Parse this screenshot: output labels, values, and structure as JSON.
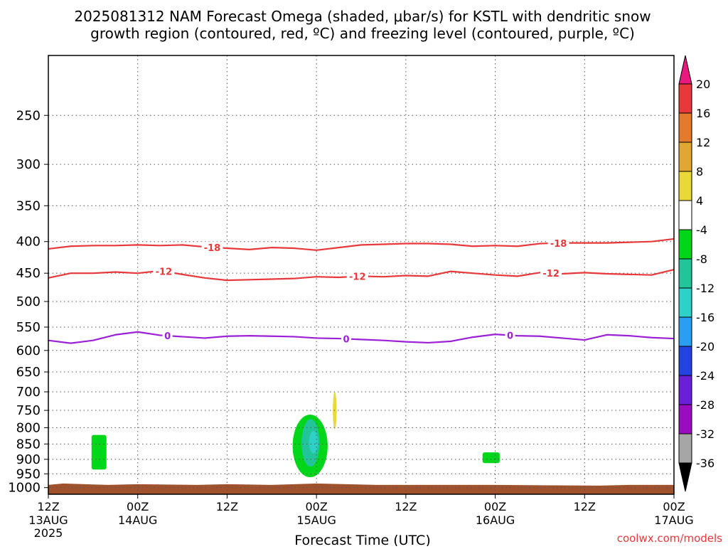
{
  "chart_data": {
    "type": "heatmap",
    "title": "2025081312 NAM Forecast Omega (shaded, μbar/s) for KSTL with dendritic snow growth region (contoured, red, ºC) and freezing level (contoured, purple, ºC)",
    "title_line1": "2025081312 NAM Forecast Omega (shaded, μbar/s) for KSTL with dendritic snow",
    "title_line2": "growth region (contoured, red, ºC) and freezing level (contoured, purple, ºC)",
    "xlabel": "Forecast Time (UTC)",
    "ylabel": "",
    "credit": "coolwx.com/models",
    "grid": true,
    "x_range_hours": [
      0,
      84
    ],
    "y_range_hPa": [
      200,
      1025
    ],
    "x_ticks": [
      {
        "hour": 0,
        "line1": "12Z",
        "line2": "13AUG",
        "line3": "2025"
      },
      {
        "hour": 12,
        "line1": "00Z",
        "line2": "14AUG",
        "line3": ""
      },
      {
        "hour": 24,
        "line1": "12Z",
        "line2": "",
        "line3": ""
      },
      {
        "hour": 36,
        "line1": "00Z",
        "line2": "15AUG",
        "line3": ""
      },
      {
        "hour": 48,
        "line1": "12Z",
        "line2": "",
        "line3": ""
      },
      {
        "hour": 60,
        "line1": "00Z",
        "line2": "16AUG",
        "line3": ""
      },
      {
        "hour": 72,
        "line1": "12Z",
        "line2": "",
        "line3": ""
      },
      {
        "hour": 84,
        "line1": "00Z",
        "line2": "17AUG",
        "line3": ""
      }
    ],
    "y_ticks": [
      250,
      300,
      350,
      400,
      450,
      500,
      550,
      600,
      650,
      700,
      750,
      800,
      850,
      900,
      950,
      1000
    ],
    "contours": [
      {
        "name": "dendritic-upper",
        "label": "-18",
        "color": "#e8383a",
        "x": [
          0,
          3,
          6,
          9,
          12,
          15,
          18,
          21,
          24,
          27,
          30,
          33,
          36,
          39,
          42,
          45,
          48,
          51,
          54,
          57,
          60,
          63,
          66,
          69,
          72,
          75,
          78,
          81,
          84
        ],
        "p": [
          411,
          407,
          406,
          406,
          405,
          406,
          405,
          408,
          410,
          412,
          409,
          410,
          413,
          409,
          405,
          404,
          403,
          403,
          404,
          407,
          406,
          407,
          403,
          402,
          402,
          402,
          401,
          400,
          396
        ],
        "label_hours": [
          22,
          68.5
        ]
      },
      {
        "name": "dendritic-lower",
        "label": "-12",
        "color": "#e8383a",
        "x": [
          0,
          3,
          6,
          9,
          12,
          15,
          18,
          21,
          24,
          27,
          30,
          33,
          36,
          39,
          42,
          45,
          48,
          51,
          54,
          57,
          60,
          63,
          66,
          69,
          72,
          75,
          78,
          81,
          84
        ],
        "p": [
          458,
          450,
          450,
          448,
          450,
          446,
          452,
          458,
          462,
          461,
          460,
          459,
          456,
          457,
          455,
          456,
          454,
          455,
          447,
          450,
          453,
          455,
          449,
          451,
          449,
          451,
          452,
          453,
          444
        ],
        "label_hours": [
          15.5,
          41.5,
          67.5
        ]
      },
      {
        "name": "freezing-level",
        "label": "0",
        "color": "#9b20d6",
        "x": [
          0,
          3,
          6,
          9,
          12,
          15,
          18,
          21,
          24,
          27,
          30,
          33,
          36,
          39,
          42,
          45,
          48,
          51,
          54,
          57,
          60,
          63,
          66,
          69,
          72,
          75,
          78,
          81,
          84
        ],
        "p": [
          578,
          584,
          578,
          566,
          560,
          567,
          570,
          573,
          569,
          568,
          569,
          570,
          573,
          574,
          576,
          578,
          581,
          583,
          580,
          571,
          565,
          568,
          569,
          573,
          577,
          566,
          568,
          572,
          574
        ],
        "label_hours": [
          16,
          40,
          62
        ]
      }
    ],
    "omega_areas": [
      {
        "name": "omega-area-green-1",
        "value": -6,
        "color": "#00d61a",
        "x_hours": [
          5.8,
          7.8
        ],
        "p_range": [
          822,
          935
        ]
      },
      {
        "name": "omega-area-green-2",
        "value": -6,
        "color": "#00d61a",
        "x_hours": [
          32.8,
          37.5
        ],
        "p_range": [
          762,
          962
        ]
      },
      {
        "name": "omega-area-teal",
        "value": -10,
        "color": "#22c49a",
        "x_hours": [
          34,
          36.4
        ],
        "p_range": [
          775,
          925
        ]
      },
      {
        "name": "omega-area-cyan",
        "value": -13,
        "color": "#2ed1c8",
        "x_hours": [
          35,
          36.2
        ],
        "p_range": [
          810,
          880
        ]
      },
      {
        "name": "omega-area-yellow",
        "value": 5,
        "color": "#e8d838",
        "x_hours": [
          38.2,
          38.7
        ],
        "p_range": [
          700,
          805
        ]
      },
      {
        "name": "omega-area-green-3",
        "value": -6,
        "color": "#00d61a",
        "x_hours": [
          58.3,
          60.6
        ],
        "p_range": [
          877,
          913
        ]
      }
    ],
    "terrain": {
      "name": "surface",
      "color": "#a0522d",
      "p_top": 990
    },
    "colorbar": {
      "ticks": [
        20,
        16,
        12,
        8,
        4,
        -4,
        -8,
        -12,
        -16,
        -20,
        -24,
        -28,
        -32,
        -36
      ],
      "colors": [
        "#e8197f",
        "#e8383a",
        "#e37a2d",
        "#e0a832",
        "#e8d838",
        "#ffffff",
        "#00d61a",
        "#22c49a",
        "#2ed1c8",
        "#2a9ef0",
        "#2344e0",
        "#6a1fd8",
        "#9b0bc0",
        "#a6a6a6",
        "#000000"
      ]
    }
  }
}
